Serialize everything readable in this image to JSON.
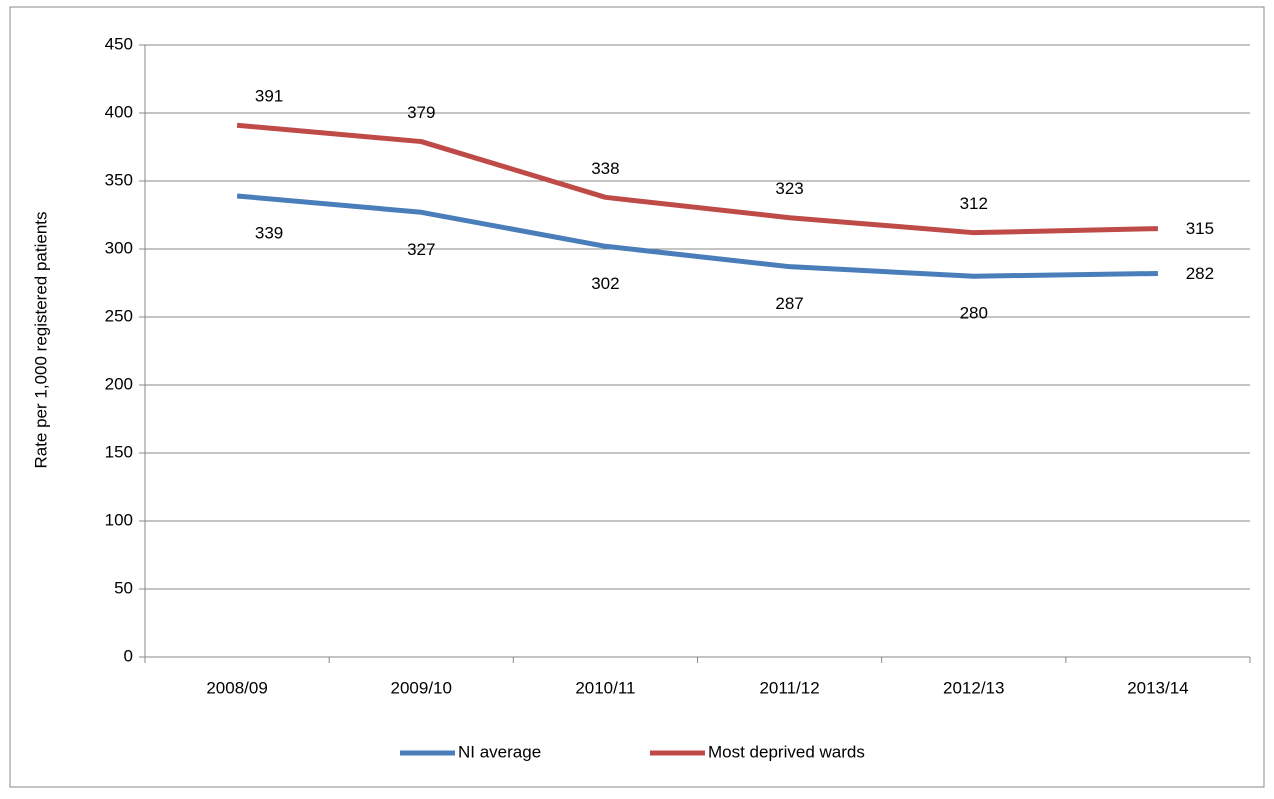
{
  "chart_data": {
    "type": "line",
    "y_label": "Rate per 1,000 registered patients",
    "categories": [
      "2008/09",
      "2009/10",
      "2010/11",
      "2011/12",
      "2012/13",
      "2013/14"
    ],
    "series": [
      {
        "name": "NI average",
        "color": "#4a7ebb",
        "values": [
          339,
          327,
          302,
          287,
          280,
          282
        ]
      },
      {
        "name": "Most deprived wards",
        "color": "#be4b48",
        "values": [
          391,
          379,
          338,
          323,
          312,
          315
        ]
      }
    ],
    "ylim": [
      0,
      450
    ],
    "yticks": [
      0,
      50,
      100,
      150,
      200,
      250,
      300,
      350,
      400,
      450
    ],
    "grid": true,
    "legend": "bottom"
  }
}
